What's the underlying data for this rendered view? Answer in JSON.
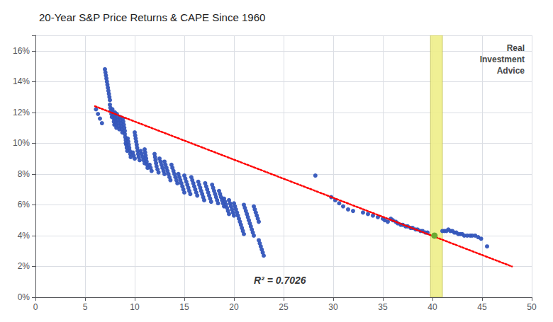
{
  "chart_data": {
    "type": "scatter",
    "title": "20-Year S&P Price Returns & CAPE Since 1960",
    "xlim": [
      0,
      50
    ],
    "ylim": [
      0.0,
      0.17
    ],
    "xticks": [
      0,
      5,
      10,
      15,
      20,
      25,
      30,
      35,
      40,
      45,
      50
    ],
    "yticks": [
      {
        "value": 0.0,
        "label": "0%"
      },
      {
        "value": 0.02,
        "label": "2%"
      },
      {
        "value": 0.04,
        "label": "4%"
      },
      {
        "value": 0.06,
        "label": "6%"
      },
      {
        "value": 0.08,
        "label": "8%"
      },
      {
        "value": 0.1,
        "label": "10%"
      },
      {
        "value": 0.12,
        "label": "12%"
      },
      {
        "value": 0.14,
        "label": "14%"
      },
      {
        "value": 0.16,
        "label": "16%"
      }
    ],
    "grid": true,
    "series": [
      {
        "type": "band",
        "color": "#eeee88",
        "x": 39.8,
        "width": 1.2,
        "y": 0.0,
        "height": 0.17
      },
      {
        "type": "scatter",
        "color": "#3355bb",
        "x": [
          6.1,
          6.3,
          6.5,
          6.7,
          7.0,
          7.05,
          7.1,
          7.15,
          7.2,
          7.25,
          7.3,
          7.35,
          7.4,
          7.45,
          7.5,
          7.5,
          7.55,
          7.6,
          7.65,
          7.7,
          7.75,
          7.8,
          7.85,
          7.9,
          7.9,
          7.95,
          8.0,
          8.0,
          8.05,
          8.1,
          8.1,
          8.15,
          8.2,
          8.25,
          8.3,
          8.35,
          8.4,
          8.45,
          8.5,
          8.55,
          8.6,
          8.65,
          8.7,
          8.75,
          8.8,
          8.85,
          8.9,
          8.95,
          9.0,
          9.0,
          9.05,
          9.1,
          9.1,
          9.15,
          9.2,
          9.25,
          9.3,
          9.35,
          9.4,
          9.45,
          9.5,
          9.55,
          9.6,
          9.8,
          9.9,
          10.0,
          10.0,
          10.05,
          10.1,
          10.15,
          10.2,
          10.25,
          10.3,
          10.35,
          10.4,
          10.5,
          10.6,
          10.7,
          10.8,
          10.9,
          11.0,
          11.0,
          11.05,
          11.1,
          11.15,
          11.2,
          11.25,
          11.3,
          11.5,
          11.6,
          11.7,
          12.0,
          12.05,
          12.1,
          12.15,
          12.2,
          12.3,
          12.4,
          12.5,
          12.6,
          12.7,
          12.8,
          12.9,
          13.0,
          13.0,
          13.1,
          13.2,
          13.3,
          13.4,
          13.5,
          13.6,
          13.7,
          13.8,
          13.9,
          14.0,
          14.1,
          14.2,
          14.3,
          14.4,
          14.5,
          14.6,
          14.7,
          14.8,
          14.9,
          15.0,
          15.0,
          15.1,
          15.2,
          15.3,
          15.4,
          15.5,
          15.6,
          15.7,
          15.8,
          15.9,
          16.0,
          16.1,
          16.2,
          16.3,
          16.4,
          16.5,
          16.6,
          16.7,
          16.8,
          16.9,
          17.0,
          17.1,
          17.2,
          17.3,
          17.4,
          17.5,
          17.6,
          17.7,
          17.8,
          17.9,
          18.0,
          18.1,
          18.2,
          18.3,
          18.4,
          18.5,
          18.6,
          18.7,
          18.8,
          18.9,
          19.0,
          19.0,
          19.1,
          19.2,
          19.3,
          19.4,
          19.5,
          19.5,
          19.6,
          19.7,
          19.8,
          19.9,
          20.0,
          20.0,
          20.1,
          20.2,
          20.3,
          20.4,
          20.5,
          20.6,
          20.7,
          20.8,
          20.9,
          21.0,
          21.0,
          21.1,
          21.2,
          21.3,
          21.4,
          21.5,
          21.6,
          21.7,
          21.8,
          21.9,
          22.0,
          22.0,
          22.1,
          22.2,
          22.3,
          22.4,
          22.5,
          22.5,
          22.6,
          22.7,
          22.8,
          22.9,
          23.0,
          28.2,
          29.8,
          30.2,
          30.6,
          31.0,
          31.5,
          32.0,
          33.0,
          33.5,
          34.0,
          34.5,
          35.0,
          35.2,
          35.5,
          35.8,
          36.0,
          36.3,
          36.5,
          36.8,
          37.0,
          37.3,
          37.5,
          37.8,
          38.0,
          38.3,
          38.5,
          38.8,
          39.0,
          39.3,
          39.5,
          41.0,
          41.2,
          41.4,
          41.6,
          41.8,
          42.0,
          42.2,
          42.4,
          42.6,
          42.8,
          43.0,
          43.2,
          43.5,
          43.8,
          44.0,
          44.3,
          44.6,
          44.9,
          45.5
        ],
        "values": [
          0.122,
          0.119,
          0.116,
          0.113,
          0.148,
          0.146,
          0.144,
          0.142,
          0.14,
          0.138,
          0.136,
          0.134,
          0.132,
          0.13,
          0.128,
          0.125,
          0.123,
          0.121,
          0.119,
          0.117,
          0.122,
          0.12,
          0.118,
          0.116,
          0.114,
          0.112,
          0.12,
          0.118,
          0.116,
          0.114,
          0.112,
          0.11,
          0.119,
          0.117,
          0.115,
          0.113,
          0.111,
          0.109,
          0.117,
          0.115,
          0.113,
          0.111,
          0.109,
          0.107,
          0.116,
          0.114,
          0.112,
          0.11,
          0.108,
          0.106,
          0.104,
          0.102,
          0.1,
          0.099,
          0.097,
          0.095,
          0.103,
          0.101,
          0.099,
          0.097,
          0.095,
          0.093,
          0.091,
          0.094,
          0.092,
          0.09,
          0.107,
          0.105,
          0.103,
          0.101,
          0.099,
          0.097,
          0.095,
          0.093,
          0.091,
          0.089,
          0.095,
          0.093,
          0.091,
          0.089,
          0.087,
          0.096,
          0.094,
          0.092,
          0.09,
          0.088,
          0.086,
          0.084,
          0.086,
          0.084,
          0.082,
          0.093,
          0.091,
          0.089,
          0.087,
          0.085,
          0.083,
          0.081,
          0.09,
          0.088,
          0.086,
          0.084,
          0.082,
          0.08,
          0.088,
          0.086,
          0.084,
          0.082,
          0.08,
          0.078,
          0.076,
          0.086,
          0.084,
          0.082,
          0.08,
          0.078,
          0.076,
          0.074,
          0.08,
          0.078,
          0.076,
          0.074,
          0.072,
          0.07,
          0.068,
          0.079,
          0.077,
          0.075,
          0.073,
          0.071,
          0.069,
          0.067,
          0.078,
          0.076,
          0.074,
          0.072,
          0.07,
          0.068,
          0.066,
          0.075,
          0.073,
          0.071,
          0.069,
          0.067,
          0.065,
          0.063,
          0.074,
          0.072,
          0.07,
          0.068,
          0.066,
          0.064,
          0.062,
          0.073,
          0.071,
          0.069,
          0.067,
          0.065,
          0.063,
          0.061,
          0.069,
          0.067,
          0.065,
          0.063,
          0.061,
          0.059,
          0.064,
          0.062,
          0.06,
          0.058,
          0.056,
          0.054,
          0.063,
          0.061,
          0.059,
          0.057,
          0.055,
          0.053,
          0.061,
          0.059,
          0.057,
          0.055,
          0.053,
          0.051,
          0.049,
          0.047,
          0.045,
          0.043,
          0.041,
          0.06,
          0.058,
          0.056,
          0.054,
          0.052,
          0.05,
          0.048,
          0.046,
          0.044,
          0.042,
          0.04,
          0.059,
          0.057,
          0.055,
          0.053,
          0.051,
          0.049,
          0.037,
          0.035,
          0.033,
          0.031,
          0.029,
          0.027,
          0.079,
          0.065,
          0.063,
          0.061,
          0.059,
          0.057,
          0.056,
          0.055,
          0.054,
          0.053,
          0.052,
          0.051,
          0.05,
          0.049,
          0.051,
          0.05,
          0.049,
          0.048,
          0.047,
          0.047,
          0.046,
          0.046,
          0.045,
          0.045,
          0.044,
          0.044,
          0.043,
          0.043,
          0.042,
          0.042,
          0.043,
          0.043,
          0.043,
          0.044,
          0.043,
          0.043,
          0.042,
          0.042,
          0.041,
          0.041,
          0.041,
          0.04,
          0.04,
          0.04,
          0.04,
          0.04,
          0.039,
          0.038,
          0.033
        ]
      },
      {
        "type": "scatter",
        "color": "#6aaa30",
        "x": [
          40.2
        ],
        "values": [
          0.04
        ]
      },
      {
        "type": "line",
        "color": "red",
        "line_style": "dotted",
        "x": [
          6.0,
          48.0
        ],
        "values": [
          0.124,
          0.02
        ]
      }
    ],
    "annotations": [
      {
        "text": "R² = 0.7026",
        "x": 22,
        "y": 0.011
      },
      {
        "text": "Real"
      },
      {
        "text": "Investment"
      },
      {
        "text": "Advice"
      }
    ]
  }
}
